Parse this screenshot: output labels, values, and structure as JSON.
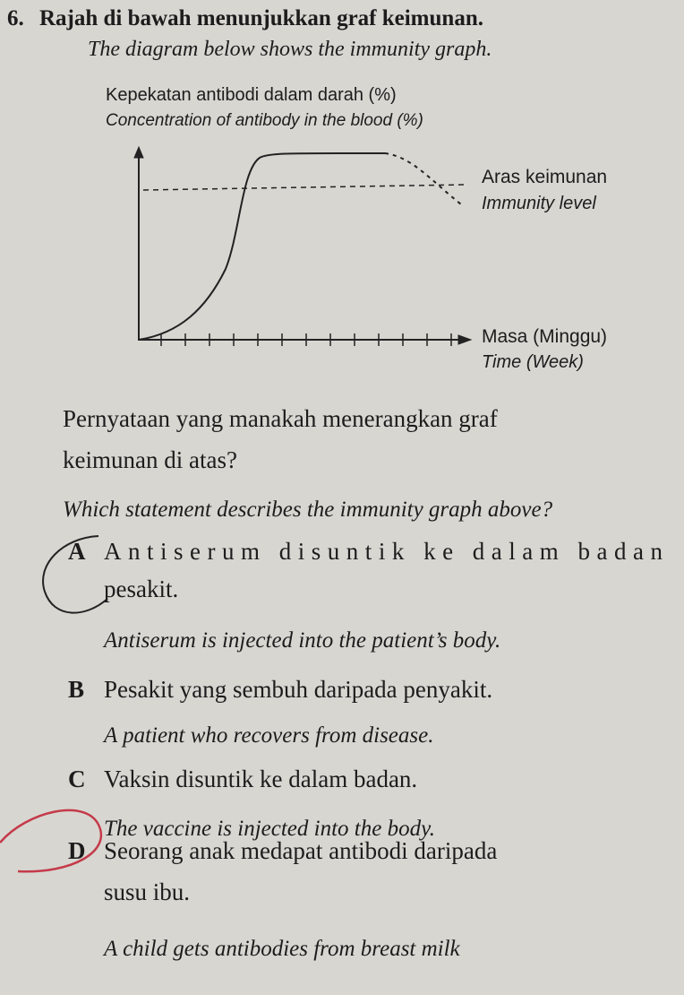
{
  "question": {
    "number": "6.",
    "title": "Rajah di bawah menunjukkan graf keimunan.",
    "title_en": "The diagram below shows the immunity graph."
  },
  "diagram": {
    "y_label": "Kepekatan antibodi dalam darah (%)",
    "y_label_en": "Concentration of antibody in the blood (%)",
    "level_label": "Aras keimunan",
    "level_label_en": "Immunity level",
    "x_label": "Masa (Minggu)",
    "x_label_en": "Time (Week)"
  },
  "stem": {
    "lines": [
      "Pernyataan yang manakah menerangkan graf",
      "keimunan di atas?"
    ],
    "en": "Which statement describes the immunity graph above?"
  },
  "options": [
    {
      "letter": "A",
      "lines": [
        "Antiserum disuntik ke dalam badan",
        "pesakit."
      ],
      "en": "Antiserum is injected into the patient’s body."
    },
    {
      "letter": "B",
      "lines": [
        "Pesakit yang sembuh daripada penyakit."
      ],
      "en": "A patient who recovers from disease."
    },
    {
      "letter": "C",
      "lines": [
        "Vaksin disuntik ke dalam badan."
      ],
      "en": "The vaccine is injected into the body."
    },
    {
      "letter": "D",
      "lines": [
        "Seorang anak medapat antibodi daripada",
        "susu ibu."
      ],
      "en": "A child gets antibodies from breast milk"
    }
  ]
}
